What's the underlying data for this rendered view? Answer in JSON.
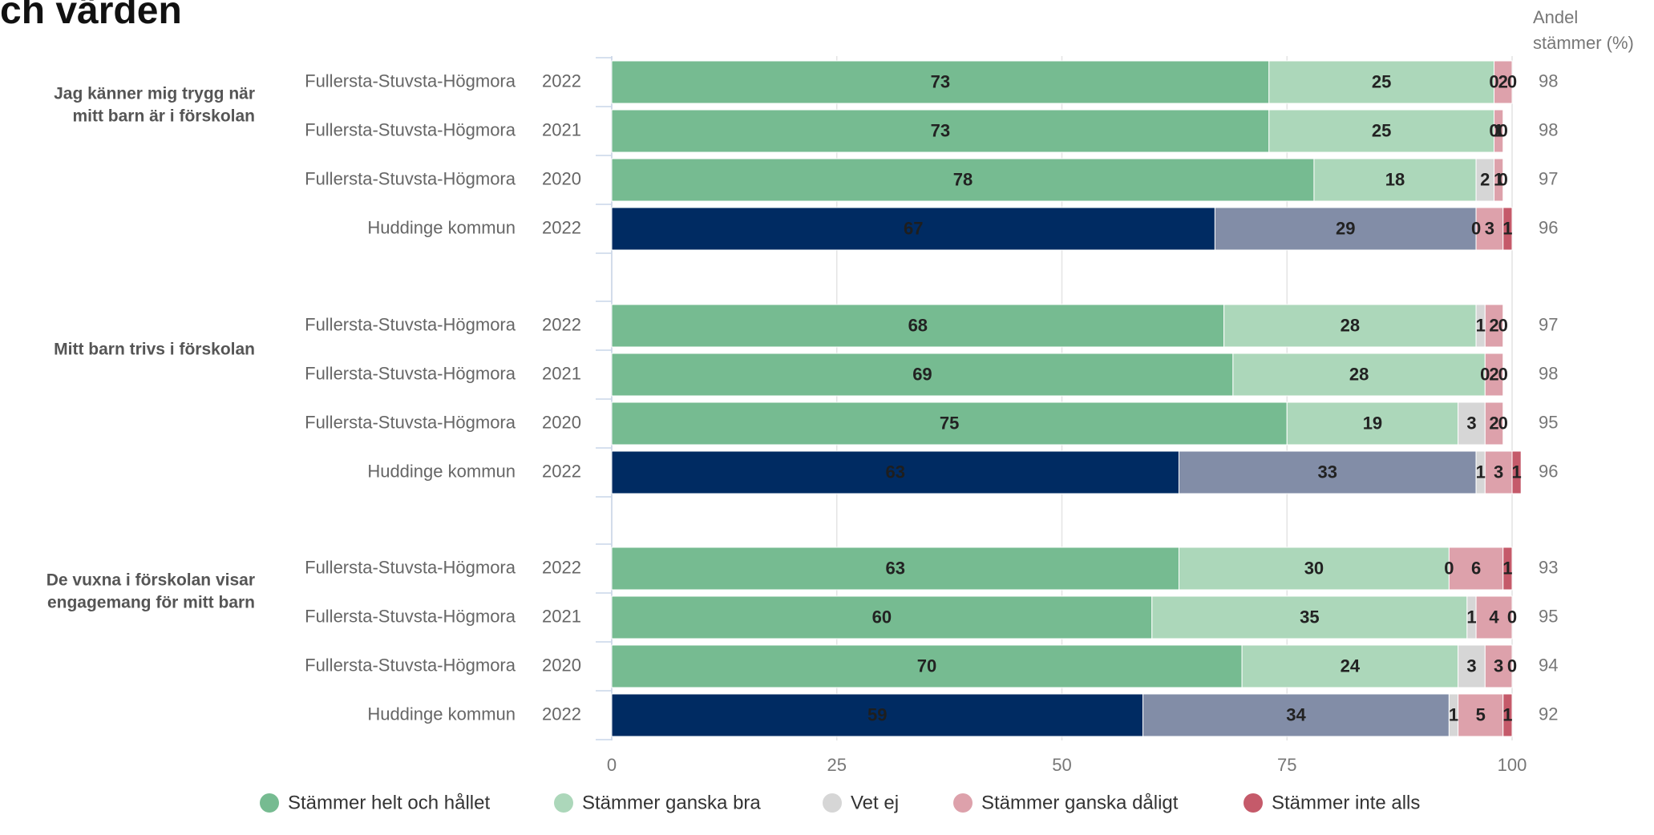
{
  "title_fragment": "ch värden",
  "share_column_header": [
    "Andel",
    "stämmer (%)"
  ],
  "chart_data": {
    "type": "bar",
    "orientation": "horizontal",
    "stacked": true,
    "xlim": [
      0,
      100
    ],
    "xticks": [
      0,
      25,
      50,
      75,
      100
    ],
    "grid": true,
    "legend_position": "bottom",
    "series": [
      {
        "name": "Stämmer helt och hållet",
        "color": "#76bb91",
        "alt_color": "#002b62"
      },
      {
        "name": "Stämmer ganska bra",
        "color": "#acd7ba",
        "alt_color": "#828da7"
      },
      {
        "name": "Vet ej",
        "color": "#d6d6d6",
        "alt_color": "#d6d6d6"
      },
      {
        "name": "Stämmer ganska dåligt",
        "color": "#dda1ab",
        "alt_color": "#dda1ab"
      },
      {
        "name": "Stämmer inte alls",
        "color": "#c55a6a",
        "alt_color": "#c55a6a"
      }
    ],
    "groups": [
      {
        "question": [
          "Jag känner mig trygg när",
          "mitt barn är i förskolan"
        ],
        "rows": [
          {
            "unit": "Fullersta-Stuvsta-Högmora",
            "year": "2022",
            "values": [
              73,
              25,
              0,
              2,
              0
            ],
            "share": 98,
            "municipality": false
          },
          {
            "unit": "Fullersta-Stuvsta-Högmora",
            "year": "2021",
            "values": [
              73,
              25,
              0,
              1,
              0
            ],
            "share": 98,
            "municipality": false
          },
          {
            "unit": "Fullersta-Stuvsta-Högmora",
            "year": "2020",
            "values": [
              78,
              18,
              2,
              1,
              0
            ],
            "share": 97,
            "municipality": false
          },
          {
            "unit": "Huddinge kommun",
            "year": "2022",
            "values": [
              67,
              29,
              0,
              3,
              1
            ],
            "share": 96,
            "municipality": true
          }
        ]
      },
      {
        "question": [
          "Mitt barn trivs i förskolan"
        ],
        "rows": [
          {
            "unit": "Fullersta-Stuvsta-Högmora",
            "year": "2022",
            "values": [
              68,
              28,
              1,
              2,
              0
            ],
            "share": 97,
            "municipality": false
          },
          {
            "unit": "Fullersta-Stuvsta-Högmora",
            "year": "2021",
            "values": [
              69,
              28,
              0,
              2,
              0
            ],
            "share": 98,
            "municipality": false
          },
          {
            "unit": "Fullersta-Stuvsta-Högmora",
            "year": "2020",
            "values": [
              75,
              19,
              3,
              2,
              0
            ],
            "share": 95,
            "municipality": false
          },
          {
            "unit": "Huddinge kommun",
            "year": "2022",
            "values": [
              63,
              33,
              1,
              3,
              1
            ],
            "share": 96,
            "municipality": true
          }
        ]
      },
      {
        "question": [
          "De vuxna i förskolan visar",
          "engagemang för mitt barn"
        ],
        "rows": [
          {
            "unit": "Fullersta-Stuvsta-Högmora",
            "year": "2022",
            "values": [
              63,
              30,
              0,
              6,
              1
            ],
            "share": 93,
            "municipality": false
          },
          {
            "unit": "Fullersta-Stuvsta-Högmora",
            "year": "2021",
            "values": [
              60,
              35,
              1,
              4,
              0
            ],
            "share": 95,
            "municipality": false
          },
          {
            "unit": "Fullersta-Stuvsta-Högmora",
            "year": "2020",
            "values": [
              70,
              24,
              3,
              3,
              0
            ],
            "share": 94,
            "municipality": false
          },
          {
            "unit": "Huddinge kommun",
            "year": "2022",
            "values": [
              59,
              34,
              1,
              5,
              1
            ],
            "share": 92,
            "municipality": true
          }
        ]
      }
    ]
  }
}
